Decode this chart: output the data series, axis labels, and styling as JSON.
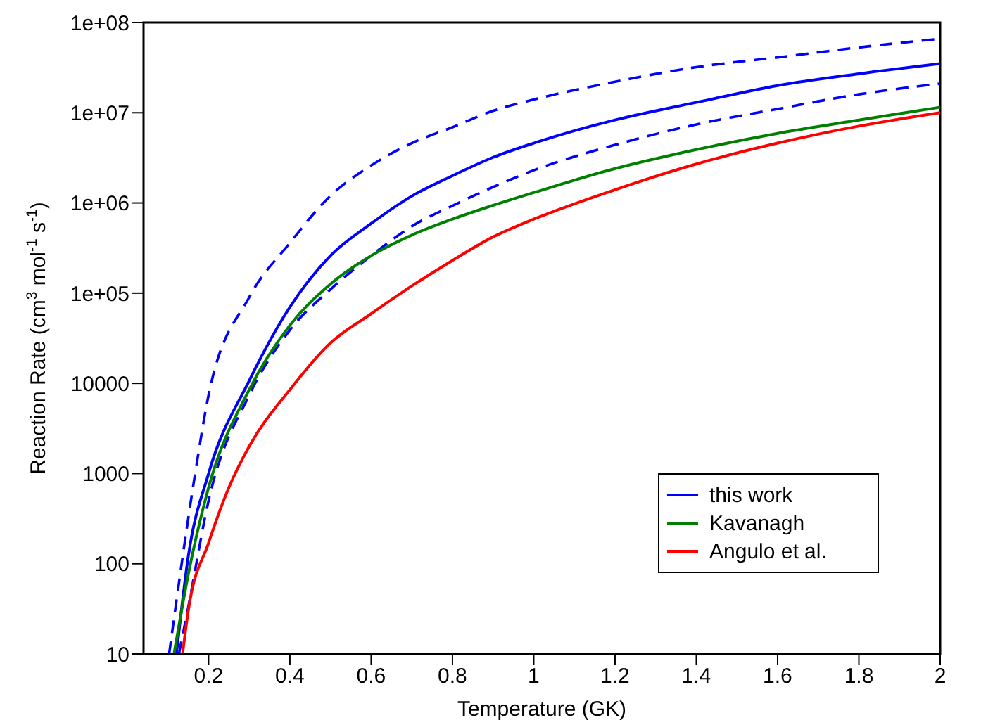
{
  "chart_data": {
    "type": "line",
    "xlabel": "Temperature (GK)",
    "ylabel": "Reaction Rate (cm$^{3}$ mol$^{-1}$ s$^{-1}$)",
    "log": "y",
    "xlim": [
      0.04,
      2
    ],
    "xticks": [
      0.2,
      0.4,
      0.6,
      0.8,
      1,
      1.2,
      1.4,
      1.6,
      1.8,
      2
    ],
    "ylim": [
      10,
      100000000
    ],
    "yticks": [
      {
        "value": 10,
        "label": "10"
      },
      {
        "value": 100,
        "label": "100"
      },
      {
        "value": 1000,
        "label": "1000"
      },
      {
        "value": 10000,
        "label": "10000"
      },
      {
        "value": 100000,
        "label": "1e+05"
      },
      {
        "value": 1000000,
        "label": "1e+06"
      },
      {
        "value": 10000000,
        "label": "1e+07"
      },
      {
        "value": 100000000,
        "label": "1e+08"
      }
    ],
    "legend": "bottom right",
    "marker": "none",
    "series": [
      {
        "name": "this work",
        "color": "#0000ff",
        "line_style": "solid",
        "x": [
          0.121,
          0.15,
          0.2,
          0.3,
          0.4,
          0.5,
          0.6,
          0.7,
          0.8,
          0.9,
          1.0,
          1.2,
          1.4,
          1.6,
          1.8,
          2.0
        ],
        "values": [
          10,
          120,
          1000,
          10700,
          70000,
          260000,
          590000,
          1190000,
          2000000,
          3200000,
          4600000,
          8300000,
          13000000,
          20000000,
          27000000,
          35000000
        ]
      },
      {
        "color": "#0000ff",
        "line_style": "dashed",
        "x": [
          0.103,
          0.167,
          0.2,
          0.3,
          0.4,
          0.5,
          0.6,
          0.7,
          0.8,
          0.9,
          1.0,
          1.2,
          1.4,
          1.6,
          1.8,
          2.0
        ],
        "values": [
          10,
          1000,
          7400,
          90000,
          360000,
          1200000,
          2600000,
          4600000,
          6900000,
          10500000,
          14000000,
          22000000,
          32000000,
          41000000,
          53000000,
          66000000
        ]
      },
      {
        "color": "#0000ff",
        "line_style": "dashed",
        "x": [
          0.127,
          0.15,
          0.2,
          0.3,
          0.4,
          0.5,
          0.6,
          0.7,
          0.8,
          0.9,
          1.0,
          1.2,
          1.4,
          1.6,
          1.8,
          2.0
        ],
        "values": [
          10,
          33,
          500,
          7400,
          39000,
          110000,
          260000,
          550000,
          930000,
          1500000,
          2300000,
          4400000,
          7400000,
          11000000,
          16000000,
          21000000
        ]
      },
      {
        "name": "Kavanagh",
        "color": "#008000",
        "line_style": "solid",
        "x": [
          0.115,
          0.15,
          0.2,
          0.3,
          0.4,
          0.5,
          0.6,
          0.7,
          0.8,
          0.9,
          1.0,
          1.2,
          1.4,
          1.6,
          1.8,
          2.0
        ],
        "values": [
          10,
          76,
          700,
          8500,
          44000,
          126000,
          260000,
          440000,
          660000,
          940000,
          1300000,
          2400000,
          3900000,
          5900000,
          8300000,
          11500000
        ]
      },
      {
        "name": "Angulo et al.",
        "color": "#ff0000",
        "line_style": "solid",
        "x": [
          0.136,
          0.15,
          0.2,
          0.25,
          0.3,
          0.4,
          0.5,
          0.6,
          0.7,
          0.8,
          0.9,
          1.0,
          1.2,
          1.4,
          1.6,
          1.8,
          2.0
        ],
        "values": [
          10,
          30,
          170,
          700,
          2000,
          8500,
          28000,
          59000,
          120000,
          230000,
          420000,
          660000,
          1400000,
          2700000,
          4600000,
          7100000,
          10000000
        ]
      }
    ]
  }
}
